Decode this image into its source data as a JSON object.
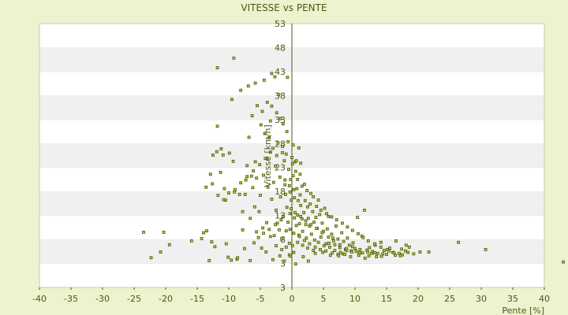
{
  "chart_data": {
    "type": "scatter",
    "title": "VITESSE vs PENTE",
    "xlabel": "Pente [%]",
    "ylabel": "Vitesse [km/h]",
    "xlim": [
      -40,
      40
    ],
    "ylim": [
      -2,
      53
    ],
    "xticks": [
      "-40",
      "-35",
      "-30",
      "-25",
      "-20",
      "-15",
      "-10",
      "-5",
      "0",
      "5",
      "10",
      "15",
      "20",
      "25",
      "30",
      "35",
      "40"
    ],
    "yticks": [
      "3",
      "8",
      "13",
      "18",
      "23",
      "28",
      "33",
      "38",
      "43",
      "48",
      "53"
    ],
    "ytick_values": [
      3,
      8,
      13,
      18,
      23,
      28,
      33,
      38,
      43,
      48,
      53
    ],
    "grid": "horizontal bands",
    "colors": {
      "point_fill": "#b8c94a",
      "point_stroke": "#4b5a0a",
      "band_light": "#ffffff",
      "band_dark": "#f0f0f0",
      "background": "#eef2cf"
    },
    "points": [
      [
        -23.5,
        9.5
      ],
      [
        -22.3,
        4.2
      ],
      [
        -20.3,
        9.5
      ],
      [
        -20.8,
        5.4
      ],
      [
        -19.4,
        6.9
      ],
      [
        -15.9,
        7.7
      ],
      [
        -14,
        9.4
      ],
      [
        -13.5,
        9.8
      ],
      [
        -13.6,
        18.9
      ],
      [
        -13.1,
        3.6
      ],
      [
        -12.9,
        21.6
      ],
      [
        -12.6,
        19.6
      ],
      [
        -12.2,
        6.5
      ],
      [
        -12.5,
        25.6
      ],
      [
        -11.9,
        26.3
      ],
      [
        -11.2,
        26.9
      ],
      [
        -11.8,
        31.6
      ],
      [
        -11.7,
        17.2
      ],
      [
        -11.3,
        22
      ],
      [
        -10.7,
        18.6
      ],
      [
        -10.9,
        25.6
      ],
      [
        -9.9,
        26
      ],
      [
        -10.1,
        4.3
      ],
      [
        -9.6,
        3.7
      ],
      [
        -10.5,
        16.2
      ],
      [
        -9.3,
        24.3
      ],
      [
        -8.7,
        3.9
      ],
      [
        -9.1,
        17.9
      ],
      [
        -8.3,
        17.4
      ],
      [
        -7.8,
        10
      ],
      [
        -7.8,
        13.8
      ],
      [
        -7.4,
        17.4
      ],
      [
        -7.3,
        20.4
      ],
      [
        -7.1,
        23.4
      ],
      [
        -6.8,
        29.3
      ],
      [
        -6.6,
        12.4
      ],
      [
        -6.2,
        18.8
      ],
      [
        -6.4,
        21.2
      ],
      [
        -5.9,
        14.8
      ],
      [
        -5.8,
        24.2
      ],
      [
        -5.6,
        9.6
      ],
      [
        -5.6,
        20.8
      ],
      [
        -5.2,
        13.8
      ],
      [
        -5,
        17.2
      ],
      [
        -4.9,
        31.9
      ],
      [
        -4.8,
        6.2
      ],
      [
        -4.6,
        10.4
      ],
      [
        -4.5,
        21.4
      ],
      [
        -4.3,
        30.1
      ],
      [
        -4,
        11.5
      ],
      [
        -3.9,
        24.8
      ],
      [
        -3.8,
        18.9
      ],
      [
        -3.6,
        29.2
      ],
      [
        -3.4,
        8.6
      ],
      [
        -3.4,
        32.7
      ],
      [
        -3.2,
        16.4
      ],
      [
        -3,
        27
      ],
      [
        -2.9,
        19.9
      ],
      [
        -2.8,
        8.8
      ],
      [
        -2.6,
        23.3
      ],
      [
        -2.5,
        14.1
      ],
      [
        -2.3,
        11.4
      ],
      [
        -2.2,
        28.1
      ],
      [
        -2,
        10
      ],
      [
        -1.9,
        21
      ],
      [
        -1.8,
        16.9
      ],
      [
        -1.6,
        8.1
      ],
      [
        -1.5,
        27.4
      ],
      [
        -1.4,
        12.8
      ],
      [
        -1.2,
        24.4
      ],
      [
        -1.1,
        20.4
      ],
      [
        -1,
        17.4
      ],
      [
        -0.9,
        9.8
      ],
      [
        -0.8,
        14.7
      ],
      [
        -0.6,
        11.6
      ],
      [
        -0.5,
        22.6
      ],
      [
        -0.4,
        19.2
      ],
      [
        -0.3,
        13.4
      ],
      [
        -0.2,
        20.5
      ],
      [
        -0.1,
        16.2
      ],
      [
        0.1,
        23.8
      ],
      [
        0.2,
        21.3
      ],
      [
        0.3,
        18.4
      ],
      [
        0.4,
        12.5
      ],
      [
        0.5,
        24.2
      ],
      [
        0.6,
        22.2
      ],
      [
        0.7,
        10.9
      ],
      [
        0.8,
        18.6
      ],
      [
        0.9,
        13.1
      ],
      [
        1,
        16.1
      ],
      [
        1.1,
        8.9
      ],
      [
        1.2,
        11.3
      ],
      [
        1.3,
        21.6
      ],
      [
        1.4,
        15.1
      ],
      [
        1.6,
        12.3
      ],
      [
        1.7,
        9.7
      ],
      [
        1.9,
        13.6
      ],
      [
        2,
        19.5
      ],
      [
        2.2,
        11.1
      ],
      [
        2.3,
        8.3
      ],
      [
        2.5,
        14.8
      ],
      [
        2.6,
        12.4
      ],
      [
        2.8,
        10.8
      ],
      [
        3,
        17.6
      ],
      [
        3.1,
        9.1
      ],
      [
        3.3,
        13.8
      ],
      [
        3.5,
        11.6
      ],
      [
        3.6,
        7.9
      ],
      [
        3.8,
        12.6
      ],
      [
        4,
        10.3
      ],
      [
        4.2,
        16.2
      ],
      [
        4.4,
        13.2
      ],
      [
        4.6,
        8.5
      ],
      [
        4.8,
        11.4
      ],
      [
        5,
        9.7
      ],
      [
        5.2,
        14.5
      ],
      [
        5.4,
        7.1
      ],
      [
        5.6,
        10.2
      ],
      [
        5.8,
        12.8
      ],
      [
        6,
        6.4
      ],
      [
        6.3,
        9.1
      ],
      [
        6.5,
        8.3
      ],
      [
        6.8,
        6.9
      ],
      [
        7,
        10.8
      ],
      [
        7.3,
        8.1
      ],
      [
        7.6,
        6.3
      ],
      [
        7.9,
        9.4
      ],
      [
        8.2,
        7.6
      ],
      [
        8.5,
        5.9
      ],
      [
        8.8,
        8.3
      ],
      [
        9.1,
        6.8
      ],
      [
        9.4,
        5.6
      ],
      [
        9.7,
        7.3
      ],
      [
        10,
        6.1
      ],
      [
        10.4,
        12.6
      ],
      [
        10.7,
        5.2
      ],
      [
        11.1,
        8.7
      ],
      [
        11.5,
        14.1
      ],
      [
        11.9,
        5.8
      ],
      [
        12.3,
        6.3
      ],
      [
        12.8,
        5.5
      ],
      [
        13.2,
        6.8
      ],
      [
        13.6,
        5.1
      ],
      [
        14.1,
        7.4
      ],
      [
        14.6,
        5.7
      ],
      [
        15,
        4.9
      ],
      [
        15.5,
        6.2
      ],
      [
        16,
        5.3
      ],
      [
        16.5,
        7.7
      ],
      [
        17,
        5.1
      ],
      [
        17.5,
        4.8
      ],
      [
        18,
        5.6
      ],
      [
        18.6,
        6.4
      ],
      [
        19.3,
        5
      ],
      [
        20.3,
        5.4
      ],
      [
        21.7,
        5.4
      ],
      [
        26.4,
        7.4
      ],
      [
        30.7,
        5.9
      ],
      [
        43,
        3.3
      ],
      [
        -1.2,
        3.5
      ],
      [
        -0.7,
        41.8
      ],
      [
        -0.4,
        4.8
      ],
      [
        -9.2,
        45.8
      ],
      [
        -11.8,
        43.8
      ],
      [
        -3.2,
        42.6
      ],
      [
        -2.7,
        41.9
      ],
      [
        -4.4,
        41.2
      ],
      [
        -5.8,
        40.6
      ],
      [
        -6.9,
        40
      ],
      [
        -8.1,
        39.1
      ],
      [
        -9.5,
        37.2
      ],
      [
        -3.9,
        36.6
      ],
      [
        -3.2,
        35.8
      ],
      [
        -2.4,
        34.4
      ],
      [
        -1.8,
        33.2
      ],
      [
        -1.4,
        32.1
      ],
      [
        -0.8,
        30.5
      ],
      [
        -5.5,
        35.9
      ],
      [
        -4.7,
        34.7
      ],
      [
        -6.3,
        33.8
      ],
      [
        -2.1,
        38.2
      ],
      [
        -0.2,
        4.5
      ],
      [
        0.3,
        5.3
      ],
      [
        0.6,
        2.9
      ],
      [
        1.8,
        4.4
      ],
      [
        2.6,
        3.5
      ],
      [
        3.7,
        5.1
      ],
      [
        4.9,
        5.3
      ],
      [
        6.1,
        4.7
      ],
      [
        7.3,
        4.9
      ],
      [
        8.1,
        5
      ],
      [
        -1.6,
        5.9
      ],
      [
        -2.5,
        6.7
      ],
      [
        -4.1,
        5.4
      ],
      [
        -6.6,
        3.6
      ],
      [
        -7.5,
        6.1
      ],
      [
        -8.6,
        4.2
      ],
      [
        -10.4,
        7.1
      ],
      [
        -12.7,
        7.5
      ],
      [
        -14.3,
        8.2
      ],
      [
        -1.5,
        26.1
      ],
      [
        -0.9,
        25.8
      ],
      [
        0,
        25.1
      ],
      [
        0.7,
        24.4
      ],
      [
        1.4,
        23.9
      ],
      [
        -2.4,
        25.5
      ],
      [
        -3.4,
        26.2
      ],
      [
        -4.2,
        24.9
      ],
      [
        -5.1,
        23.6
      ],
      [
        -6.1,
        22.3
      ],
      [
        -7.1,
        21.1
      ],
      [
        -8.1,
        19.8
      ],
      [
        -9,
        18.4
      ],
      [
        -10,
        17.7
      ],
      [
        -10.8,
        16.3
      ],
      [
        -0.6,
        28.4
      ],
      [
        0.2,
        27.7
      ],
      [
        1.1,
        27.1
      ],
      [
        -1.1,
        19.4
      ],
      [
        -0.3,
        17.9
      ],
      [
        0.4,
        16.7
      ],
      [
        1.3,
        17.3
      ],
      [
        2.1,
        16.1
      ],
      [
        2.9,
        15.4
      ],
      [
        3.9,
        14.9
      ],
      [
        4.6,
        14.1
      ],
      [
        5.5,
        13.4
      ],
      [
        6.3,
        12.7
      ],
      [
        7.1,
        12.1
      ],
      [
        8,
        11.4
      ],
      [
        8.8,
        10.6
      ],
      [
        9.6,
        9.9
      ],
      [
        10.5,
        9.2
      ],
      [
        11.3,
        8.4
      ],
      [
        12.1,
        7.7
      ],
      [
        13.1,
        7.1
      ],
      [
        14.1,
        6.4
      ],
      [
        15.1,
        5.9
      ],
      [
        16.2,
        5.2
      ],
      [
        17.2,
        4.6
      ],
      [
        18.1,
        6.8
      ],
      [
        0.9,
        20.5
      ],
      [
        1.6,
        19.1
      ],
      [
        2.4,
        18.2
      ],
      [
        3.4,
        16.9
      ],
      [
        -0.1,
        14.4
      ],
      [
        0.5,
        13.6
      ],
      [
        1.4,
        12.8
      ],
      [
        2.2,
        11.9
      ],
      [
        3,
        11.1
      ],
      [
        3.9,
        10.3
      ],
      [
        4.8,
        9.4
      ],
      [
        5.8,
        8.5
      ],
      [
        6.6,
        7.7
      ],
      [
        7.6,
        6.9
      ],
      [
        8.6,
        6.1
      ],
      [
        9.5,
        5.4
      ],
      [
        10.6,
        4.7
      ],
      [
        11.6,
        4.1
      ],
      [
        12.6,
        5.1
      ],
      [
        13.4,
        4.4
      ],
      [
        14.4,
        5
      ],
      [
        -1.7,
        12.1
      ],
      [
        -2.6,
        11.1
      ],
      [
        -3.6,
        10.1
      ],
      [
        -4.5,
        9.3
      ],
      [
        -5.3,
        8.4
      ],
      [
        -6,
        7.3
      ],
      [
        -0.3,
        10.1
      ],
      [
        0.3,
        9.3
      ],
      [
        1.2,
        8.6
      ],
      [
        2,
        7.8
      ],
      [
        2.8,
        7.1
      ],
      [
        3.7,
        6.4
      ],
      [
        4.5,
        5.9
      ],
      [
        5.4,
        5.6
      ],
      [
        6.4,
        5.2
      ],
      [
        7.4,
        4.6
      ],
      [
        8.4,
        4.9
      ],
      [
        9.3,
        4.4
      ],
      [
        10.2,
        5.5
      ],
      [
        11.2,
        5.2
      ],
      [
        12.2,
        4.6
      ],
      [
        -3,
        3.8
      ],
      [
        -1.9,
        4.6
      ],
      [
        -0.9,
        6.4
      ],
      [
        -0.4,
        7.2
      ],
      [
        0.1,
        6.7
      ],
      [
        0.9,
        7.4
      ],
      [
        1.7,
        6.8
      ],
      [
        2.5,
        6.2
      ],
      [
        3.4,
        5.7
      ],
      [
        4.2,
        7.4
      ],
      [
        5.1,
        6.7
      ],
      [
        5.9,
        7.2
      ],
      [
        6.8,
        5.7
      ],
      [
        7.7,
        5.3
      ],
      [
        8.7,
        5.7
      ],
      [
        9.6,
        6.5
      ],
      [
        10.8,
        5.9
      ],
      [
        12,
        5.4
      ],
      [
        13.1,
        5.2
      ],
      [
        14.2,
        4.5
      ],
      [
        15.4,
        5.6
      ],
      [
        16.4,
        4.7
      ],
      [
        17.4,
        6
      ],
      [
        18.4,
        5.3
      ]
    ]
  }
}
